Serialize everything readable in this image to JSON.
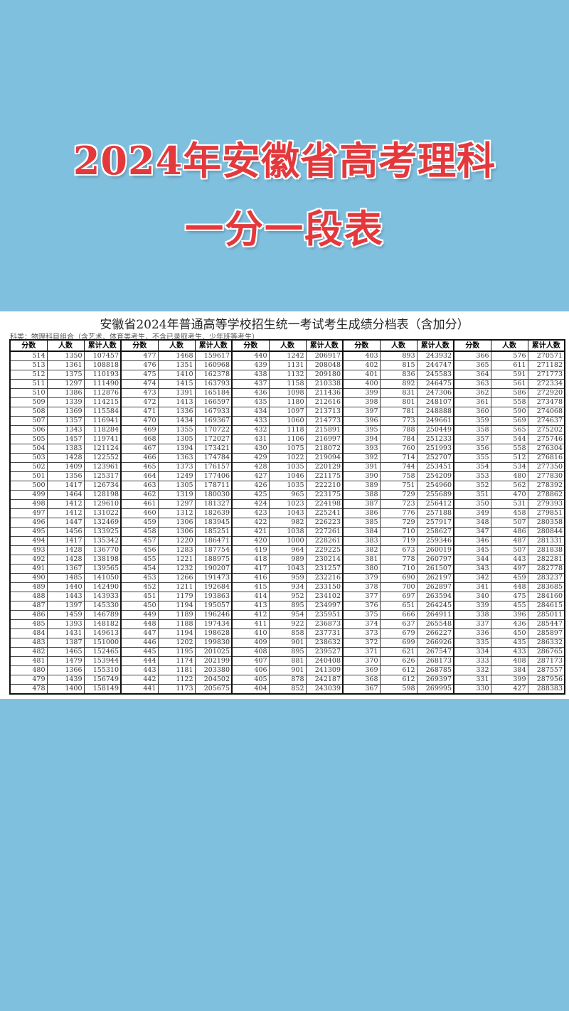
{
  "banner": {
    "line1": "2024年安徽省高考理科",
    "line2": "一分一段表",
    "color": "#e3393d",
    "background": "#80c0df"
  },
  "document": {
    "title": "安徽省2024年普通高等学校招生统一考试考生成绩分档表（含加分）",
    "note": "科类：物理科目组合（含艺术、体育类考生，不含已录取考生、少年班等考生）"
  },
  "table": {
    "headers": [
      "分数",
      "人数",
      "累计人数"
    ],
    "groups": [
      [
        [
          514,
          1350,
          107457
        ],
        [
          513,
          1361,
          108818
        ],
        [
          512,
          1375,
          110193
        ],
        [
          511,
          1297,
          111490
        ],
        [
          510,
          1386,
          112876
        ],
        [
          509,
          1339,
          114215
        ],
        [
          508,
          1369,
          115584
        ],
        [
          507,
          1357,
          116941
        ],
        [
          506,
          1343,
          118284
        ],
        [
          505,
          1457,
          119741
        ],
        [
          504,
          1383,
          121124
        ],
        [
          503,
          1428,
          122552
        ],
        [
          502,
          1409,
          123961
        ],
        [
          501,
          1356,
          125317
        ],
        [
          500,
          1417,
          126734
        ],
        [
          499,
          1464,
          128198
        ],
        [
          498,
          1412,
          129610
        ],
        [
          497,
          1412,
          131022
        ],
        [
          496,
          1447,
          132469
        ],
        [
          495,
          1456,
          133925
        ],
        [
          494,
          1417,
          135342
        ],
        [
          493,
          1428,
          136770
        ],
        [
          492,
          1428,
          138198
        ],
        [
          491,
          1367,
          139565
        ],
        [
          490,
          1485,
          141050
        ],
        [
          489,
          1440,
          142490
        ],
        [
          488,
          1443,
          143933
        ],
        [
          487,
          1397,
          145330
        ],
        [
          486,
          1459,
          146789
        ],
        [
          485,
          1393,
          148182
        ],
        [
          484,
          1431,
          149613
        ],
        [
          483,
          1387,
          151000
        ],
        [
          482,
          1465,
          152465
        ],
        [
          481,
          1479,
          153944
        ],
        [
          480,
          1366,
          155310
        ],
        [
          479,
          1439,
          156749
        ],
        [
          478,
          1400,
          158149
        ]
      ],
      [
        [
          477,
          1468,
          159617
        ],
        [
          476,
          1351,
          160968
        ],
        [
          475,
          1410,
          162378
        ],
        [
          474,
          1415,
          163793
        ],
        [
          473,
          1391,
          165184
        ],
        [
          472,
          1413,
          166597
        ],
        [
          471,
          1336,
          167933
        ],
        [
          470,
          1434,
          169367
        ],
        [
          469,
          1355,
          170722
        ],
        [
          468,
          1305,
          172027
        ],
        [
          467,
          1394,
          173421
        ],
        [
          466,
          1363,
          174784
        ],
        [
          465,
          1373,
          176157
        ],
        [
          464,
          1249,
          177406
        ],
        [
          463,
          1305,
          178711
        ],
        [
          462,
          1319,
          180030
        ],
        [
          461,
          1297,
          181327
        ],
        [
          460,
          1312,
          182639
        ],
        [
          459,
          1306,
          183945
        ],
        [
          458,
          1306,
          185251
        ],
        [
          457,
          1220,
          186471
        ],
        [
          456,
          1283,
          187754
        ],
        [
          455,
          1221,
          188975
        ],
        [
          454,
          1232,
          190207
        ],
        [
          453,
          1266,
          191473
        ],
        [
          452,
          1211,
          192684
        ],
        [
          451,
          1179,
          193863
        ],
        [
          450,
          1194,
          195057
        ],
        [
          449,
          1189,
          196246
        ],
        [
          448,
          1188,
          197434
        ],
        [
          447,
          1194,
          198628
        ],
        [
          446,
          1202,
          199830
        ],
        [
          445,
          1195,
          201025
        ],
        [
          444,
          1174,
          202199
        ],
        [
          443,
          1181,
          203380
        ],
        [
          442,
          1122,
          204502
        ],
        [
          441,
          1173,
          205675
        ]
      ],
      [
        [
          440,
          1242,
          206917
        ],
        [
          439,
          1131,
          208048
        ],
        [
          438,
          1132,
          209180
        ],
        [
          437,
          1158,
          210338
        ],
        [
          436,
          1098,
          211436
        ],
        [
          435,
          1180,
          212616
        ],
        [
          434,
          1097,
          213713
        ],
        [
          433,
          1060,
          214773
        ],
        [
          432,
          1118,
          215891
        ],
        [
          431,
          1106,
          216997
        ],
        [
          430,
          1075,
          218072
        ],
        [
          429,
          1022,
          219094
        ],
        [
          428,
          1035,
          220129
        ],
        [
          427,
          1046,
          221175
        ],
        [
          426,
          1035,
          222210
        ],
        [
          425,
          965,
          223175
        ],
        [
          424,
          1023,
          224198
        ],
        [
          423,
          1043,
          225241
        ],
        [
          422,
          982,
          226223
        ],
        [
          421,
          1038,
          227261
        ],
        [
          420,
          1000,
          228261
        ],
        [
          419,
          964,
          229225
        ],
        [
          418,
          989,
          230214
        ],
        [
          417,
          1043,
          231257
        ],
        [
          416,
          959,
          232216
        ],
        [
          415,
          934,
          233150
        ],
        [
          414,
          952,
          234102
        ],
        [
          413,
          895,
          234997
        ],
        [
          412,
          954,
          235951
        ],
        [
          411,
          922,
          236873
        ],
        [
          410,
          858,
          237731
        ],
        [
          409,
          901,
          238632
        ],
        [
          408,
          895,
          239527
        ],
        [
          407,
          881,
          240408
        ],
        [
          406,
          901,
          241309
        ],
        [
          405,
          878,
          242187
        ],
        [
          404,
          852,
          243039
        ]
      ],
      [
        [
          403,
          893,
          243932
        ],
        [
          402,
          815,
          244747
        ],
        [
          401,
          836,
          245583
        ],
        [
          400,
          892,
          246475
        ],
        [
          399,
          831,
          247306
        ],
        [
          398,
          801,
          248107
        ],
        [
          397,
          781,
          248888
        ],
        [
          396,
          773,
          249661
        ],
        [
          395,
          788,
          250449
        ],
        [
          394,
          784,
          251233
        ],
        [
          393,
          760,
          251993
        ],
        [
          392,
          714,
          252707
        ],
        [
          391,
          744,
          253451
        ],
        [
          390,
          758,
          254209
        ],
        [
          389,
          751,
          254960
        ],
        [
          388,
          729,
          255689
        ],
        [
          387,
          723,
          256412
        ],
        [
          386,
          776,
          257188
        ],
        [
          385,
          729,
          257917
        ],
        [
          384,
          710,
          258627
        ],
        [
          383,
          719,
          259346
        ],
        [
          382,
          673,
          260019
        ],
        [
          381,
          778,
          260797
        ],
        [
          380,
          710,
          261507
        ],
        [
          379,
          690,
          262197
        ],
        [
          378,
          700,
          262897
        ],
        [
          377,
          697,
          263594
        ],
        [
          376,
          651,
          264245
        ],
        [
          375,
          666,
          264911
        ],
        [
          374,
          637,
          265548
        ],
        [
          373,
          679,
          266227
        ],
        [
          372,
          699,
          266926
        ],
        [
          371,
          621,
          267547
        ],
        [
          370,
          626,
          268173
        ],
        [
          369,
          612,
          268785
        ],
        [
          368,
          612,
          269397
        ],
        [
          367,
          598,
          269995
        ]
      ],
      [
        [
          366,
          576,
          270571
        ],
        [
          365,
          611,
          271182
        ],
        [
          364,
          591,
          271773
        ],
        [
          363,
          561,
          272334
        ],
        [
          362,
          586,
          272920
        ],
        [
          361,
          558,
          273478
        ],
        [
          360,
          590,
          274068
        ],
        [
          359,
          569,
          274637
        ],
        [
          358,
          565,
          275202
        ],
        [
          357,
          544,
          275746
        ],
        [
          356,
          558,
          276304
        ],
        [
          355,
          512,
          276816
        ],
        [
          354,
          534,
          277350
        ],
        [
          353,
          480,
          277830
        ],
        [
          352,
          562,
          278392
        ],
        [
          351,
          470,
          278862
        ],
        [
          350,
          531,
          279393
        ],
        [
          349,
          458,
          279851
        ],
        [
          348,
          507,
          280358
        ],
        [
          347,
          486,
          280844
        ],
        [
          346,
          487,
          281331
        ],
        [
          345,
          507,
          281838
        ],
        [
          344,
          443,
          282281
        ],
        [
          343,
          497,
          282778
        ],
        [
          342,
          459,
          283237
        ],
        [
          341,
          448,
          283685
        ],
        [
          340,
          475,
          284160
        ],
        [
          339,
          455,
          284615
        ],
        [
          338,
          396,
          285011
        ],
        [
          337,
          436,
          285447
        ],
        [
          336,
          450,
          285897
        ],
        [
          335,
          435,
          286332
        ],
        [
          334,
          433,
          286765
        ],
        [
          333,
          408,
          287173
        ],
        [
          332,
          384,
          287557
        ],
        [
          331,
          399,
          287956
        ],
        [
          330,
          427,
          288383
        ]
      ]
    ]
  }
}
